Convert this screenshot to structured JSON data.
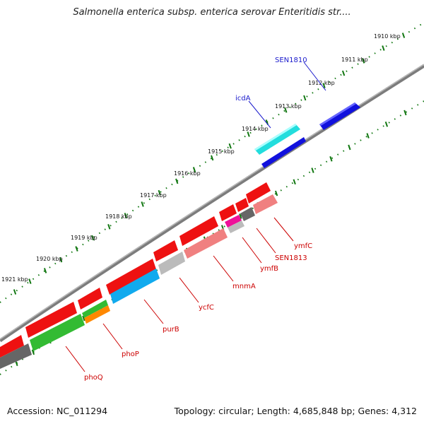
{
  "title": "Salmonella enterica subsp. enterica serovar Enteritidis str....",
  "accession_text": "Accession: NC_011294",
  "topology_text": "Topology: circular; Length: 4,685,848 bp; Genes: 4,312",
  "kbp_labels": [
    "1910 kbp",
    "1911 kbp",
    "1912 kbp",
    "1913 kbp",
    "1914 kbp",
    "1915 kbp",
    "1916 kbp",
    "1917 kbp",
    "1918 kbp",
    "1919 kbp",
    "1920 kbp",
    "1921 kbp"
  ],
  "upper_labels": [
    {
      "text": "SEN1810",
      "color": "#1a1acc"
    },
    {
      "text": "icdA",
      "color": "#1a1acc"
    }
  ],
  "lower_labels": [
    {
      "text": "ymfC",
      "color": "#cc0000"
    },
    {
      "text": "SEN1813",
      "color": "#cc0000"
    },
    {
      "text": "ymfB",
      "color": "#cc0000"
    },
    {
      "text": "mnmA",
      "color": "#cc0000"
    },
    {
      "text": "ycfC",
      "color": "#cc0000"
    },
    {
      "text": "purB",
      "color": "#cc0000"
    },
    {
      "text": "phoP",
      "color": "#cc0000"
    },
    {
      "text": "phoQ",
      "color": "#cc0000"
    }
  ],
  "colors": {
    "red": "#ee1111",
    "salmon": "#f08080",
    "blue": "#1111dd",
    "cyan": "#22dddd",
    "skyblue": "#11aaee",
    "green": "#33bb33",
    "orange": "#ff8800",
    "magenta": "#ee1199",
    "darkgray": "#666666",
    "lightgray": "#bbbbbb",
    "backbone": "#888888",
    "ticks": "#117711"
  }
}
